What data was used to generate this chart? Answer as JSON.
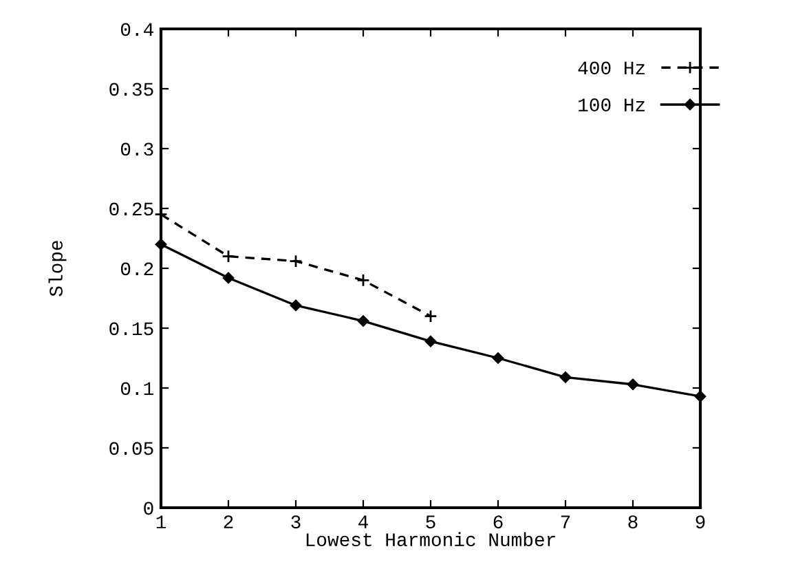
{
  "chart_data": {
    "type": "line",
    "xlabel": "Lowest Harmonic Number",
    "ylabel": "Slope",
    "xlim": [
      1,
      9
    ],
    "xticks": [
      1,
      2,
      3,
      4,
      5,
      6,
      7,
      8,
      9
    ],
    "ylim": [
      0,
      0.4
    ],
    "yticks": [
      0,
      0.05,
      0.1,
      0.15,
      0.2,
      0.25,
      0.3,
      0.35,
      0.4
    ],
    "grid": false,
    "legend": "top right",
    "series": [
      {
        "name": "400 Hz",
        "color": "#000000",
        "x": [
          1,
          2,
          3,
          4,
          5
        ],
        "values": [
          0.245,
          0.21,
          0.206,
          0.19,
          0.16
        ],
        "marker": "cross",
        "line_style": "dashed"
      },
      {
        "name": "100 Hz",
        "color": "#000000",
        "x": [
          1,
          2,
          3,
          4,
          5,
          6,
          7,
          8,
          9
        ],
        "values": [
          0.22,
          0.192,
          0.169,
          0.156,
          0.139,
          0.125,
          0.109,
          0.103,
          0.093
        ],
        "marker": "diamond",
        "line_style": "solid"
      }
    ]
  }
}
